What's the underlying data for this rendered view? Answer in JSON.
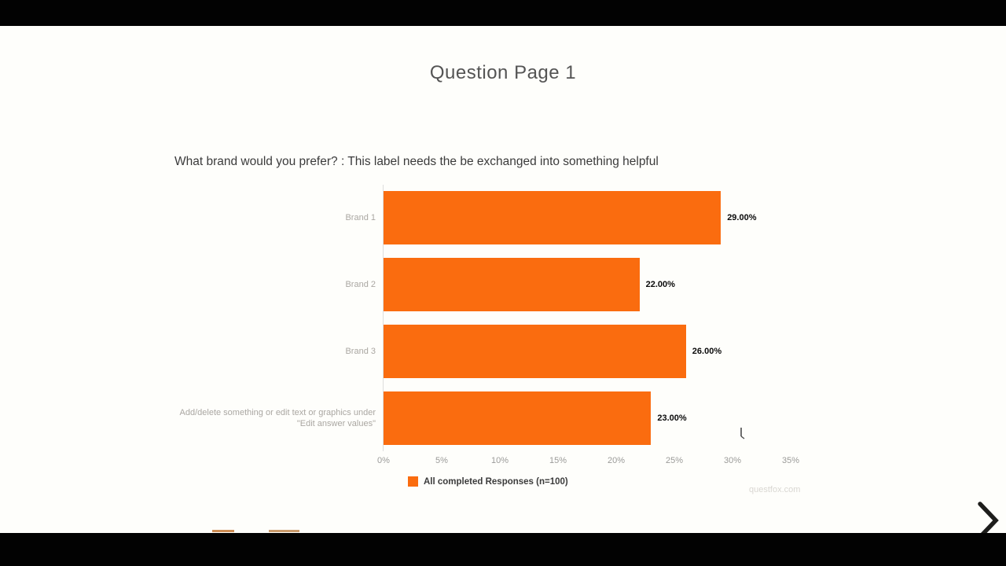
{
  "page": {
    "title": "Question Page 1",
    "question": "What brand would you prefer? : This label needs the be exchanged into something helpful",
    "watermark": "questfox.com"
  },
  "chart_data": {
    "type": "bar",
    "orientation": "horizontal",
    "title": "",
    "xlabel": "",
    "ylabel": "",
    "xlim": [
      0,
      35
    ],
    "grid": false,
    "categories": [
      "Brand 1",
      "Brand 2",
      "Brand 3",
      "Add/delete something or edit text or graphics under \"Edit answer values\""
    ],
    "values": [
      29,
      22,
      26,
      23
    ],
    "value_labels": [
      "29.00%",
      "22.00%",
      "26.00%",
      "23.00%"
    ],
    "x_ticks": [
      {
        "v": 0,
        "label": "0%"
      },
      {
        "v": 5,
        "label": "5%"
      },
      {
        "v": 10,
        "label": "10%"
      },
      {
        "v": 15,
        "label": "15%"
      },
      {
        "v": 20,
        "label": "20%"
      },
      {
        "v": 25,
        "label": "25%"
      },
      {
        "v": 30,
        "label": "30%"
      },
      {
        "v": 35,
        "label": "35%"
      }
    ],
    "legend": "All completed Responses (n=100)",
    "legend_position": "bottom",
    "bar_color": "#fa6c0f"
  },
  "colors": {
    "accent_orange": "#fa6c0f",
    "letterbox_black": "#020202",
    "bottom_strip_left": "#cc8c53",
    "bottom_strip_right": "#c99a6b",
    "next_arrow": "#1d1d1b"
  }
}
